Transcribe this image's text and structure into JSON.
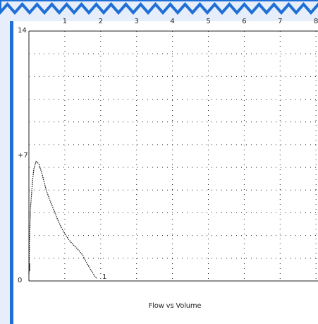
{
  "colors": {
    "frame_blue": "#1f6fd6",
    "panel_bg": "#e5eefa",
    "plot_bg": "#ffffff",
    "grid": "#222222",
    "trace": "#111111"
  },
  "chart_data": {
    "type": "line",
    "caption": "Flow vs Volume",
    "x_tick_labels": [
      "1",
      "2",
      "3",
      "4",
      "5",
      "6",
      "7",
      "8"
    ],
    "y_tick_labels": [
      "14",
      "+7",
      "0"
    ],
    "xlim": [
      0,
      8
    ],
    "ylim": [
      0,
      14
    ],
    "grid": true,
    "marker_label": "1",
    "series": [
      {
        "x": [
          0.0,
          0.02,
          0.05,
          0.1,
          0.14,
          0.2,
          0.28,
          0.38,
          0.48,
          0.6,
          0.7,
          0.8,
          0.9,
          1.0,
          1.1,
          1.2,
          1.35,
          1.5,
          1.6,
          1.7,
          1.78,
          1.84,
          1.9
        ],
        "y": [
          0.4,
          2.5,
          4.2,
          5.6,
          6.3,
          6.7,
          6.55,
          5.9,
          5.1,
          4.45,
          3.95,
          3.45,
          3.0,
          2.65,
          2.35,
          2.1,
          1.8,
          1.45,
          1.05,
          0.7,
          0.45,
          0.25,
          0.12
        ]
      }
    ]
  }
}
